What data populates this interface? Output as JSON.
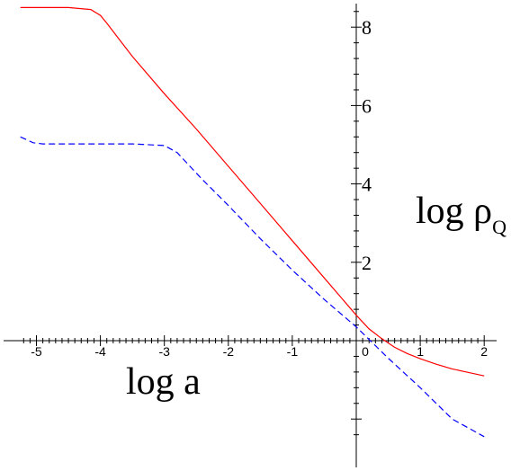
{
  "chart_data": {
    "type": "line",
    "title": "",
    "xlabel": "log a",
    "ylabel": "log ρ",
    "ylabel_subscript": "Q",
    "xlim": [
      -5.25,
      2.0
    ],
    "ylim": [
      -2.5,
      8.6
    ],
    "x_ticks": [
      -5,
      -4,
      -3,
      -2,
      -1,
      0,
      1,
      2
    ],
    "x_tick_labels": [
      "-5",
      "-4",
      "-3",
      "-2",
      "-1",
      "0",
      "1",
      "2"
    ],
    "y_ticks": [
      2,
      4,
      6,
      8
    ],
    "y_tick_labels": [
      "2",
      "4",
      "6",
      "8"
    ],
    "grid": false,
    "series": [
      {
        "color": "#ff0000",
        "dash": "solid",
        "x": [
          -5.25,
          -4.5,
          -4.15,
          -4.0,
          -3.9,
          -3.5,
          -3.0,
          -2.5,
          -2.0,
          -1.5,
          -1.0,
          -0.5,
          0.0,
          0.2,
          0.4,
          0.6,
          0.8,
          1.0,
          1.25,
          1.5,
          1.75,
          2.0
        ],
        "y": [
          8.5,
          8.5,
          8.45,
          8.3,
          8.1,
          7.25,
          6.3,
          5.4,
          4.45,
          3.5,
          2.55,
          1.6,
          0.65,
          0.3,
          0.05,
          -0.17,
          -0.33,
          -0.46,
          -0.6,
          -0.72,
          -0.81,
          -0.9
        ]
      },
      {
        "color": "#0000ff",
        "dash": "dashed",
        "x": [
          -5.25,
          -5.05,
          -4.9,
          -4.5,
          -4.0,
          -3.5,
          -3.0,
          -2.8,
          -2.6,
          -2.4,
          -2.0,
          -1.5,
          -1.0,
          -0.5,
          0.0,
          0.5,
          1.0,
          1.5,
          2.0
        ],
        "y": [
          5.2,
          5.05,
          5.02,
          5.02,
          5.02,
          5.02,
          4.98,
          4.8,
          4.45,
          4.1,
          3.45,
          2.6,
          1.8,
          1.05,
          0.35,
          -0.45,
          -1.2,
          -2.0,
          -2.45
        ]
      }
    ]
  }
}
